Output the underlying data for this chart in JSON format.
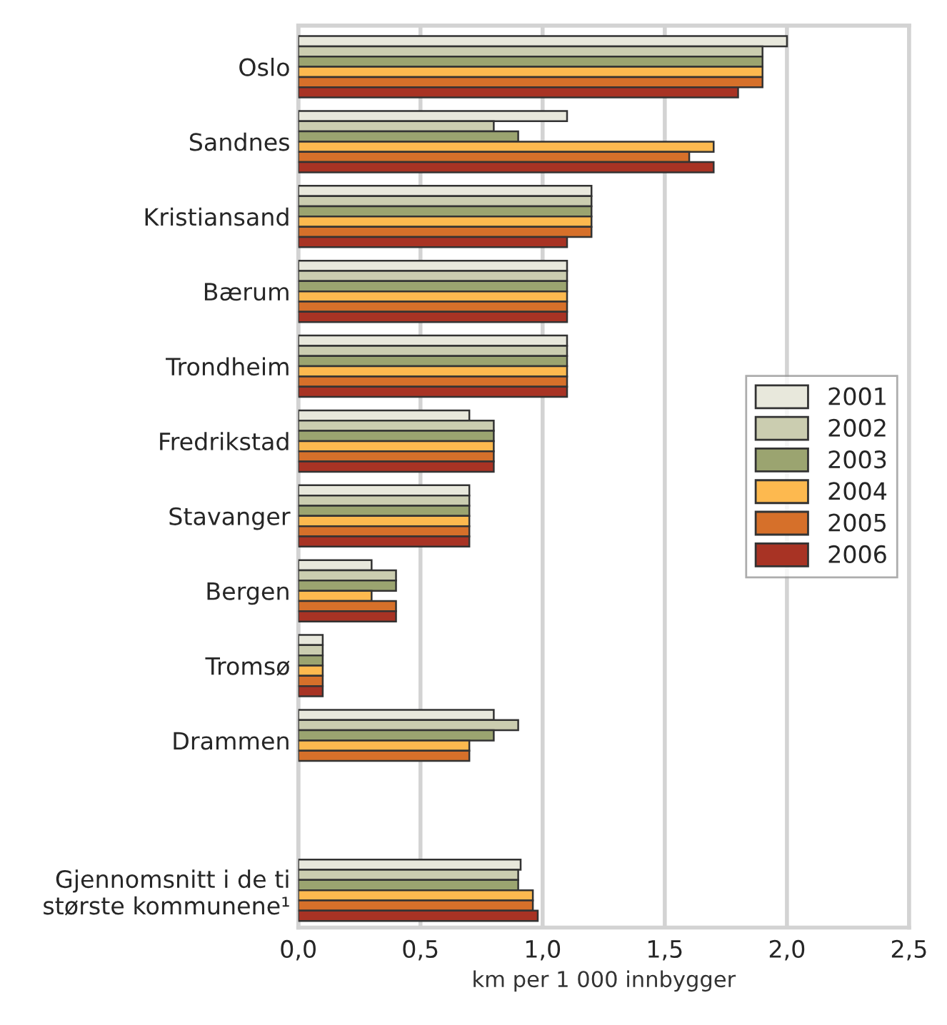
{
  "chart_data": {
    "type": "bar",
    "orientation": "horizontal",
    "categories": [
      "Oslo",
      "Sandnes",
      "Kristiansand",
      "Bærum",
      "Trondheim",
      "Fredrikstad",
      "Stavanger",
      "Bergen",
      "Tromsø",
      "Drammen",
      null,
      "Gjennomsnitt i de ti\nstørste kommunene¹"
    ],
    "series": [
      {
        "name": "2001",
        "color": "#e8e8dc",
        "values": [
          2.0,
          1.1,
          1.2,
          1.1,
          1.1,
          0.7,
          0.7,
          0.3,
          0.1,
          0.8,
          null,
          0.91
        ]
      },
      {
        "name": "2002",
        "color": "#cbcdb0",
        "values": [
          1.9,
          0.8,
          1.2,
          1.1,
          1.1,
          0.8,
          0.7,
          0.4,
          0.1,
          0.9,
          null,
          0.9
        ]
      },
      {
        "name": "2003",
        "color": "#9ba470",
        "values": [
          1.9,
          0.9,
          1.2,
          1.1,
          1.1,
          0.8,
          0.7,
          0.4,
          0.1,
          0.8,
          null,
          0.9
        ]
      },
      {
        "name": "2004",
        "color": "#fdb94f",
        "values": [
          1.9,
          1.7,
          1.2,
          1.1,
          1.1,
          0.8,
          0.7,
          0.3,
          0.1,
          0.7,
          null,
          0.96
        ]
      },
      {
        "name": "2005",
        "color": "#d6702a",
        "values": [
          1.9,
          1.6,
          1.2,
          1.1,
          1.1,
          0.8,
          0.7,
          0.4,
          0.1,
          0.7,
          null,
          0.96
        ]
      },
      {
        "name": "2006",
        "color": "#a83324",
        "values": [
          1.8,
          1.7,
          1.1,
          1.1,
          1.1,
          0.8,
          0.7,
          0.4,
          0.1,
          null,
          null,
          0.98
        ]
      }
    ],
    "xlabel": "km per 1 000 innbygger",
    "xlim": [
      0,
      2.5
    ],
    "xticks": [
      {
        "value": 0,
        "label": "0,0"
      },
      {
        "value": 0.5,
        "label": "0,5"
      },
      {
        "value": 1.0,
        "label": "1,0"
      },
      {
        "value": 1.5,
        "label": "1,5"
      },
      {
        "value": 2.0,
        "label": "2,0"
      },
      {
        "value": 2.5,
        "label": "2,5"
      }
    ],
    "grid": "x",
    "legend": "right"
  }
}
